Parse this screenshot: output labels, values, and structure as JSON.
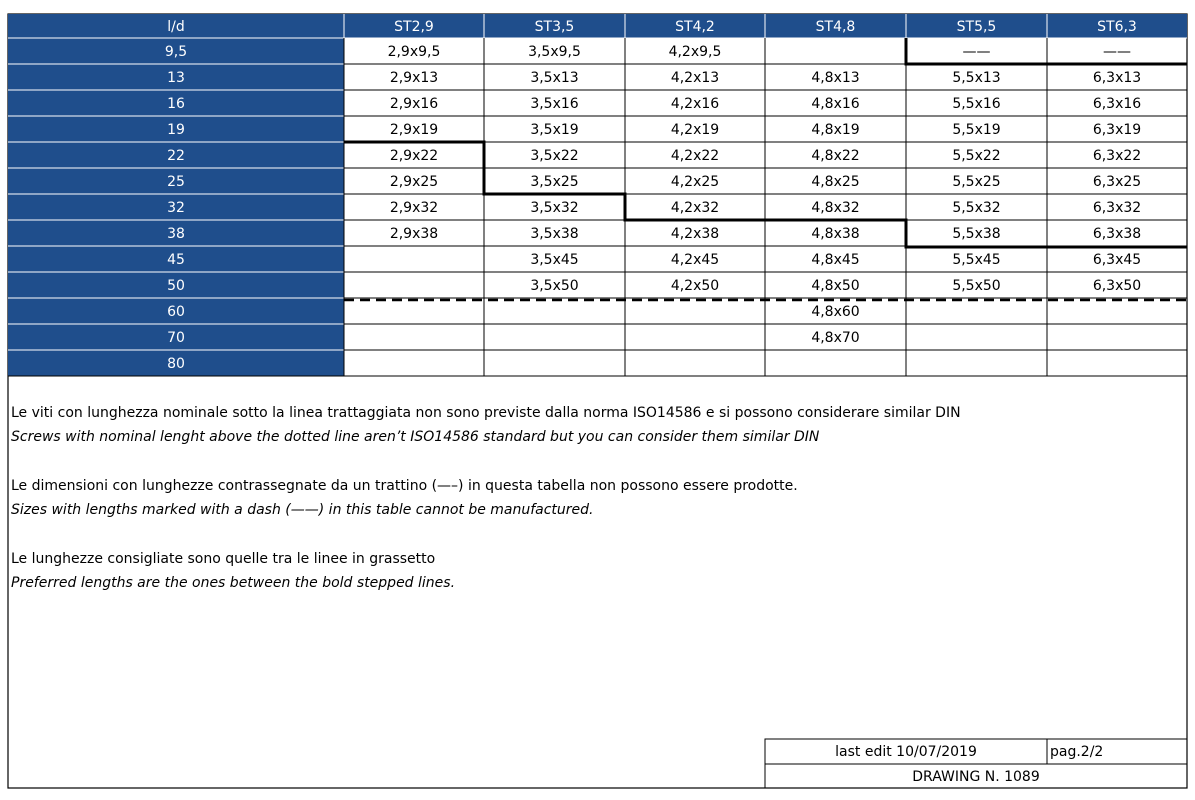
{
  "table": {
    "header": [
      "l/d",
      "ST2,9",
      "ST3,5",
      "ST4,2",
      "ST4,8",
      "ST5,5",
      "ST6,3"
    ],
    "rows": [
      [
        "9,5",
        "2,9x9,5",
        "3,5x9,5",
        "4,2x9,5",
        null,
        "——",
        "——"
      ],
      [
        "13",
        "2,9x13",
        "3,5x13",
        "4,2x13",
        "4,8x13",
        "5,5x13",
        "6,3x13"
      ],
      [
        "16",
        "2,9x16",
        "3,5x16",
        "4,2x16",
        "4,8x16",
        "5,5x16",
        "6,3x16"
      ],
      [
        "19",
        "2,9x19",
        "3,5x19",
        "4,2x19",
        "4,8x19",
        "5,5x19",
        "6,3x19"
      ],
      [
        "22",
        "2,9x22",
        "3,5x22",
        "4,2x22",
        "4,8x22",
        "5,5x22",
        "6,3x22"
      ],
      [
        "25",
        "2,9x25",
        "3,5x25",
        "4,2x25",
        "4,8x25",
        "5,5x25",
        "6,3x25"
      ],
      [
        "32",
        "2,9x32",
        "3,5x32",
        "4,2x32",
        "4,8x32",
        "5,5x32",
        "6,3x32"
      ],
      [
        "38",
        "2,9x38",
        "3,5x38",
        "4,2x38",
        "4,8x38",
        "5,5x38",
        "6,3x38"
      ],
      [
        "45",
        null,
        "3,5x45",
        "4,2x45",
        "4,8x45",
        "5,5x45",
        "6,3x45"
      ],
      [
        "50",
        null,
        "3,5x50",
        "4,2x50",
        "4,8x50",
        "5,5x50",
        "6,3x50"
      ],
      [
        "60",
        null,
        null,
        null,
        "4,8x60",
        null,
        null
      ],
      [
        "70",
        null,
        null,
        null,
        "4,8x70",
        null,
        null
      ],
      [
        "80",
        null,
        null,
        null,
        null,
        null,
        null
      ]
    ]
  },
  "notes": [
    {
      "it": "Le viti con lunghezza nominale sotto la linea trattaggiata non sono previste dalla norma ISO14586 e si possono considerare similar DIN",
      "en": "Screws with nominal lenght above the dotted line aren’t ISO14586 standard but you can consider them similar DIN"
    },
    {
      "it": "Le dimensioni con lunghezze contrassegnate da un trattino (—–) in questa tabella non possono essere prodotte.",
      "en": "Sizes with lengths marked with a dash (——) in this table cannot be manufactured."
    },
    {
      "it": "Le lunghezze consigliate sono quelle tra le linee in grassetto",
      "en": "Preferred lengths are the ones between the bold stepped lines."
    }
  ],
  "footer": {
    "last_edit": "last edit 10/07/2019",
    "page": "pag.2/2",
    "drawing": "DRAWING N. 1089"
  }
}
